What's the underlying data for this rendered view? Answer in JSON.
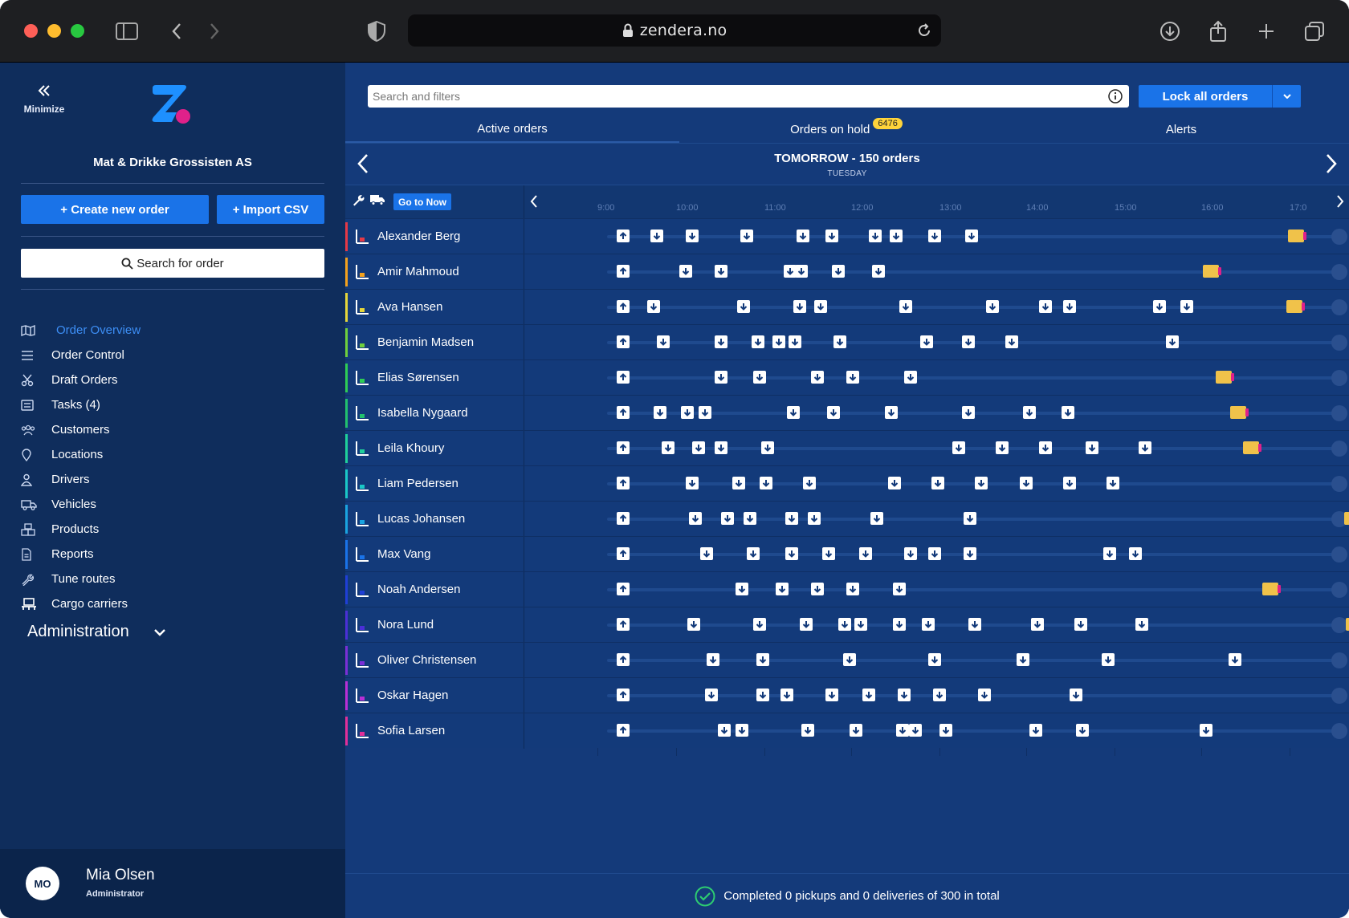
{
  "browser": {
    "url": "zendera.no"
  },
  "sidebar": {
    "minimize_label": "Minimize",
    "company": "Mat & Drikke Grossisten AS",
    "create_order_label": "+ Create new order",
    "import_csv_label": "+ Import CSV",
    "search_order_label": "Search for order",
    "nav": [
      {
        "label": "Order Overview",
        "icon": "map-icon",
        "active": true
      },
      {
        "label": "Order Control",
        "icon": "list-icon"
      },
      {
        "label": "Draft Orders",
        "icon": "scissors-icon"
      },
      {
        "label": "Tasks (4)",
        "icon": "tasks-icon"
      },
      {
        "label": "Customers",
        "icon": "customers-icon"
      },
      {
        "label": "Locations",
        "icon": "location-pin-icon"
      },
      {
        "label": "Drivers",
        "icon": "driver-icon"
      },
      {
        "label": "Vehicles",
        "icon": "truck-icon"
      },
      {
        "label": "Products",
        "icon": "boxes-icon"
      },
      {
        "label": "Reports",
        "icon": "report-icon"
      },
      {
        "label": "Tune routes",
        "icon": "wrench-icon"
      },
      {
        "label": "Cargo carriers",
        "icon": "pallet-icon"
      }
    ],
    "administration_label": "Administration",
    "user": {
      "initials": "MO",
      "name": "Mia Olsen",
      "role": "Administrator"
    }
  },
  "main": {
    "search_placeholder": "Search and filters",
    "lock_label": "Lock all orders",
    "tabs": [
      {
        "label": "Active orders"
      },
      {
        "label": "Orders on hold",
        "badge": "6476"
      },
      {
        "label": "Alerts"
      }
    ],
    "day_title": "TOMORROW - 150 orders",
    "day_sub": "TUESDAY",
    "go_now_label": "Go to Now",
    "ticks": [
      "9:00",
      "10:00",
      "11:00",
      "12:00",
      "13:00",
      "14:00",
      "15:00",
      "16:00",
      "17:0"
    ],
    "footer": "Completed 0 pickups and 0 deliveries of 300 in total"
  },
  "drivers": [
    {
      "name": "Alexander Berg",
      "color": "#e63946"
    },
    {
      "name": "Amir Mahmoud",
      "color": "#f4a11d"
    },
    {
      "name": "Ava Hansen",
      "color": "#e6d63a"
    },
    {
      "name": "Benjamin Madsen",
      "color": "#6fcf3d"
    },
    {
      "name": "Elias Sørensen",
      "color": "#2ecc55"
    },
    {
      "name": "Isabella Nygaard",
      "color": "#22c06e"
    },
    {
      "name": "Leila Khoury",
      "color": "#1fcf9a"
    },
    {
      "name": "Liam Pedersen",
      "color": "#1ac7c7"
    },
    {
      "name": "Lucas Johansen",
      "color": "#1aa4e0"
    },
    {
      "name": "Max Vang",
      "color": "#1a73e8"
    },
    {
      "name": "Noah Andersen",
      "color": "#1f3fd6"
    },
    {
      "name": "Nora Lund",
      "color": "#4b2fd6"
    },
    {
      "name": "Oliver Christensen",
      "color": "#7a2fd6"
    },
    {
      "name": "Oskar Hagen",
      "color": "#b92fd6"
    },
    {
      "name": "Sofia Larsen",
      "color": "#e02f9a"
    }
  ]
}
